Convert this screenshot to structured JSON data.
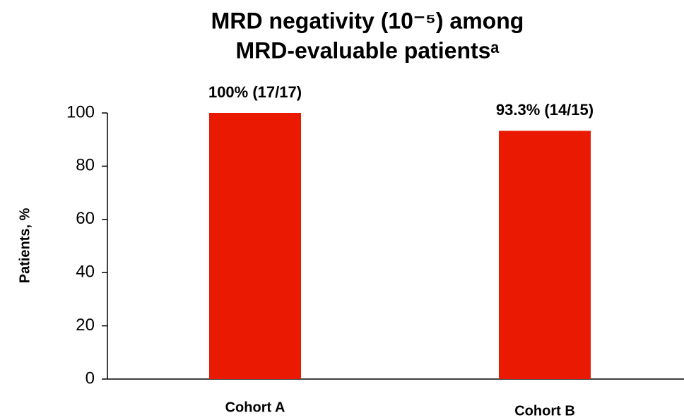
{
  "chart_data": {
    "type": "bar",
    "title": [
      "MRD negativity (10⁻⁵) among",
      "MRD-evaluable patientsᵃ"
    ],
    "y_label": "Patients, %",
    "categories": [
      "Cohort A",
      "Cohort B"
    ],
    "values": [
      100,
      93.3
    ],
    "value_labels": [
      "100% (17/17)",
      "93.3% (14/15)"
    ],
    "color": "#ea1a02",
    "ylim": [
      0,
      100
    ],
    "yticks": [
      0,
      20,
      40,
      60,
      80,
      100
    ],
    "grid": false
  }
}
